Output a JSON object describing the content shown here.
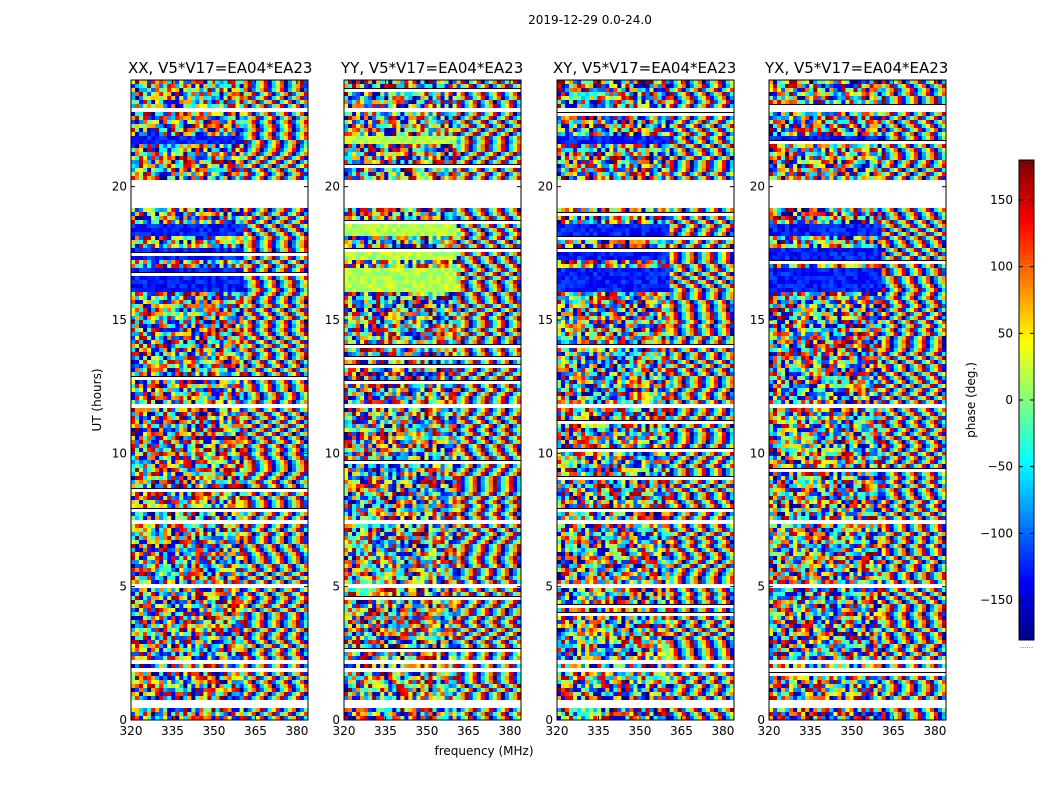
{
  "suptitle": "2019-12-29 0.0-24.0",
  "chart_data": {
    "type": "heatmap",
    "description_units": "phase in degrees per (frequency, UT) cell",
    "xlabel": "frequency (MHz)",
    "ylabel": "UT (hours)",
    "xlim": [
      320,
      384
    ],
    "ylim": [
      0,
      24
    ],
    "xticks": [
      320,
      335,
      350,
      365,
      380
    ],
    "yticks": [
      0,
      5,
      10,
      15,
      20
    ],
    "colorbar": {
      "label": "phase (deg.)",
      "range": [
        -180,
        180
      ],
      "ticks": [
        150,
        100,
        50,
        0,
        -50,
        -100,
        -150
      ],
      "tick_labels": [
        "150",
        "100",
        "50",
        "0",
        "−50",
        "−100",
        "−150"
      ],
      "under_label": "......",
      "colormap": "jet"
    },
    "panels": [
      {
        "title": "XX, V5*V17=EA04*EA23",
        "pol": "XX"
      },
      {
        "title": "YY, V5*V17=EA04*EA23",
        "pol": "YY"
      },
      {
        "title": "XY, V5*V17=EA04*EA23",
        "pol": "XY"
      },
      {
        "title": "YX, V5*V17=EA04*EA23",
        "pol": "YX"
      }
    ],
    "flagged_ut_ranges": [
      [
        0.5,
        0.7
      ],
      [
        1.75,
        1.9
      ],
      [
        2.1,
        2.25
      ],
      [
        5.0,
        5.15
      ],
      [
        7.35,
        7.55
      ],
      [
        11.7,
        11.8
      ],
      [
        19.25,
        20.25
      ],
      [
        22.8,
        22.9
      ]
    ],
    "banded_ut_ranges": [
      [
        16.0,
        17.0
      ],
      [
        17.25,
        17.7
      ],
      [
        18.15,
        18.6
      ],
      [
        21.65,
        21.9
      ]
    ]
  },
  "colors": {
    "axis": "#000000",
    "flag": "#ffffff"
  }
}
